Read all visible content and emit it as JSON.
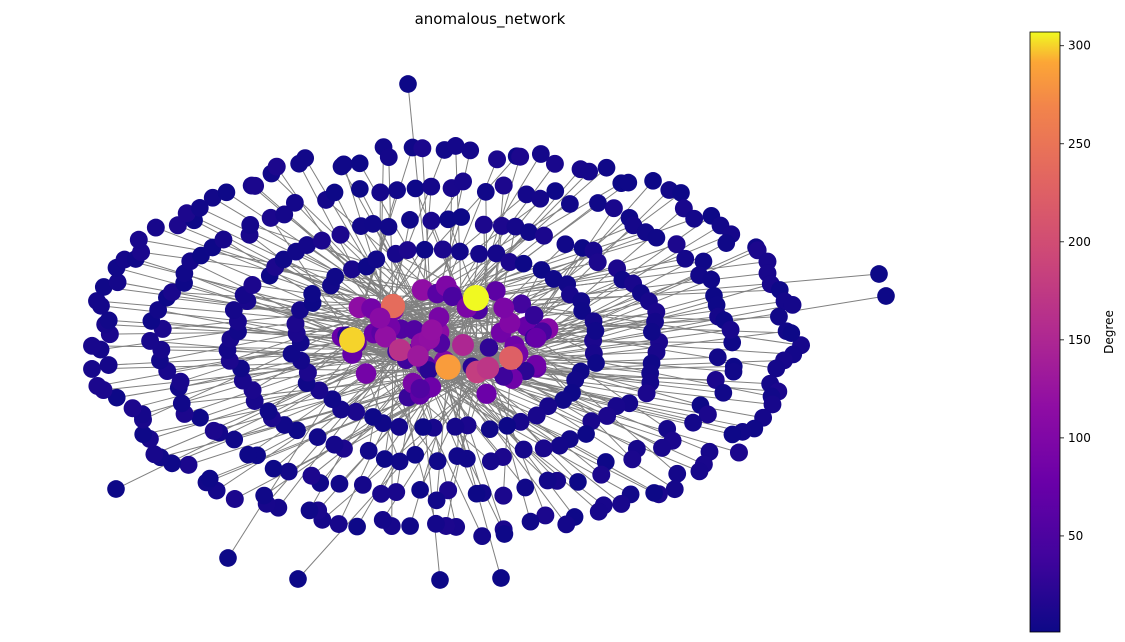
{
  "chart_data": {
    "type": "network",
    "title": "anomalous_network",
    "colorbar": {
      "label": "Degree",
      "colormap": "plasma",
      "range": [
        1,
        307
      ],
      "ticks": [
        50,
        100,
        150,
        200,
        250,
        300
      ]
    },
    "edge_color": "#808080",
    "hubs": [
      {
        "degree": 307
      },
      {
        "degree": 300
      },
      {
        "degree": 285
      },
      {
        "degree": 240
      },
      {
        "degree": 225
      },
      {
        "degree": 180
      },
      {
        "degree": 170
      },
      {
        "degree": 165
      },
      {
        "degree": 150
      },
      {
        "degree": 130
      },
      {
        "degree": 120
      },
      {
        "degree": 110
      }
    ],
    "low_degree_node_count": 420
  }
}
